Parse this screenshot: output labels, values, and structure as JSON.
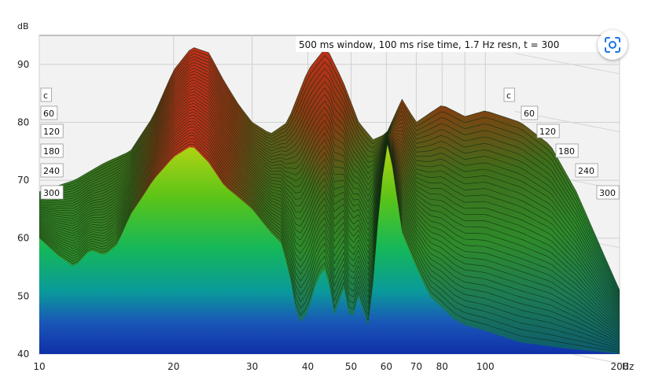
{
  "chart_data": {
    "type": "area",
    "title": "500 ms window, 100 ms rise time,  1.7 Hz resn, t = 300",
    "ylabel": "dB",
    "xunit": "Hz",
    "x_scale": "log",
    "xlim": [
      10,
      200
    ],
    "ylim": [
      40,
      95
    ],
    "x_ticks": [
      "10",
      "20",
      "30",
      "40",
      "50",
      "60",
      "70",
      "80",
      "100",
      "200"
    ],
    "y_ticks": [
      "40",
      "50",
      "60",
      "70",
      "80",
      "90"
    ],
    "time_labels": [
      "c",
      "60",
      "120",
      "180",
      "240",
      "300"
    ],
    "grid": true,
    "series": [
      {
        "time_ms": 0,
        "points": [
          [
            10,
            60
          ],
          [
            11,
            57
          ],
          [
            12,
            55
          ],
          [
            13,
            58
          ],
          [
            14,
            57
          ],
          [
            15,
            59
          ],
          [
            16,
            64
          ],
          [
            17,
            67
          ],
          [
            18,
            70
          ],
          [
            20,
            74
          ],
          [
            22,
            76
          ],
          [
            24,
            73
          ],
          [
            26,
            69
          ],
          [
            28,
            67
          ],
          [
            30,
            65
          ],
          [
            33,
            61
          ],
          [
            35,
            59
          ],
          [
            37,
            51
          ],
          [
            38,
            45
          ],
          [
            40,
            47
          ],
          [
            42,
            53
          ],
          [
            44,
            55
          ],
          [
            46,
            46
          ],
          [
            48,
            52
          ],
          [
            50,
            45
          ],
          [
            52,
            50
          ],
          [
            55,
            44
          ],
          [
            57,
            60
          ],
          [
            60,
            77
          ],
          [
            62,
            72
          ],
          [
            65,
            61
          ],
          [
            70,
            55
          ],
          [
            75,
            50
          ],
          [
            80,
            48
          ],
          [
            85,
            46
          ],
          [
            90,
            45
          ],
          [
            100,
            44
          ],
          [
            120,
            42
          ],
          [
            150,
            41
          ],
          [
            200,
            40
          ]
        ]
      },
      {
        "time_ms": 300,
        "points": [
          [
            10,
            68
          ],
          [
            12,
            70
          ],
          [
            14,
            73
          ],
          [
            16,
            75
          ],
          [
            18,
            81
          ],
          [
            20,
            89
          ],
          [
            22,
            93
          ],
          [
            24,
            92
          ],
          [
            26,
            87
          ],
          [
            28,
            83
          ],
          [
            30,
            80
          ],
          [
            33,
            78
          ],
          [
            36,
            80
          ],
          [
            40,
            89
          ],
          [
            44,
            93
          ],
          [
            48,
            87
          ],
          [
            52,
            80
          ],
          [
            56,
            77
          ],
          [
            60,
            78
          ],
          [
            65,
            84
          ],
          [
            70,
            80
          ],
          [
            80,
            83
          ],
          [
            90,
            81
          ],
          [
            100,
            82
          ],
          [
            120,
            80
          ],
          [
            140,
            76
          ],
          [
            160,
            68
          ],
          [
            180,
            59
          ],
          [
            200,
            51
          ]
        ]
      }
    ]
  },
  "ui": {
    "lens_icon": "google-lens-icon"
  }
}
